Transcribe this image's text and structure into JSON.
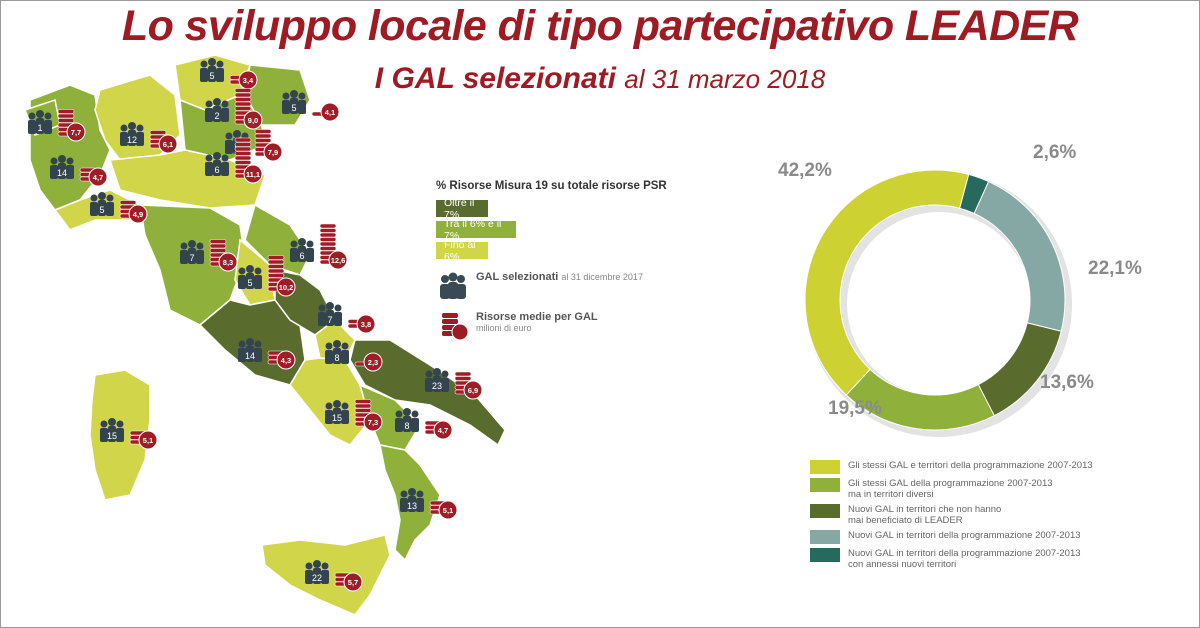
{
  "header": {
    "title": "Lo sviluppo locale di tipo partecipativo LEADER",
    "subtitle_bold": "I GAL selezionati",
    "subtitle_date": "al 31 marzo 2018"
  },
  "map_legend": {
    "title": "% Risorse Misura 19 su totale risorse PSR",
    "classes": [
      {
        "label": "Oltre il 7%",
        "color": "#5a6b2e"
      },
      {
        "label": "Tra il 6% e il 7%",
        "color": "#8fb13c"
      },
      {
        "label": "Fino al 6%",
        "color": "#d1d54a"
      }
    ],
    "gal_label": "GAL selezionati",
    "gal_date": "al 31 dicembre 2017",
    "res_label": "Risorse medie per GAL",
    "res_unit": "milioni di euro"
  },
  "regions": [
    {
      "gal": "5",
      "res": "3,4"
    },
    {
      "gal": "2",
      "res": "9,0"
    },
    {
      "gal": "5",
      "res": "4,1"
    },
    {
      "gal": "1",
      "res": "7,7"
    },
    {
      "gal": "12",
      "res": "6,1"
    },
    {
      "gal": "9",
      "res": "7,9"
    },
    {
      "gal": "14",
      "res": "4,7"
    },
    {
      "gal": "5",
      "res": "4,9"
    },
    {
      "gal": "6",
      "res": "11,1"
    },
    {
      "gal": "6",
      "res": "12,6"
    },
    {
      "gal": "7",
      "res": "8,3"
    },
    {
      "gal": "5",
      "res": "10,2"
    },
    {
      "gal": "7",
      "res": "3,8"
    },
    {
      "gal": "14",
      "res": "4,3"
    },
    {
      "gal": "8",
      "res": "2,3"
    },
    {
      "gal": "23",
      "res": "6,9"
    },
    {
      "gal": "15",
      "res": "7,3"
    },
    {
      "gal": "8",
      "res": "4,7"
    },
    {
      "gal": "15",
      "res": "5,1"
    },
    {
      "gal": "13",
      "res": "5,1"
    },
    {
      "gal": "22",
      "res": "5,7"
    }
  ],
  "chart_data": {
    "type": "pie",
    "categories": [
      "Gli stessi GAL e territori della programmazione 2007-2013",
      "Gli stessi GAL della programmazione 2007-2013 ma in territori diversi",
      "Nuovi GAL in territori che non hanno mai beneficiato di LEADER",
      "Nuovi GAL in territori della programmazione 2007-2013",
      "Nuovi GAL in territori della programmazione 2007-2013 con annessi nuovi territori"
    ],
    "values": [
      42.2,
      19.5,
      13.6,
      22.1,
      2.6
    ],
    "value_labels": [
      "42,2%",
      "19,5%",
      "13,6%",
      "22,1%",
      "2,6%"
    ],
    "colors": [
      "#cdd232",
      "#8fb13c",
      "#5a6b2e",
      "#86a8a4",
      "#256a5c"
    ],
    "legend_lines": [
      [
        "Gli stessi GAL e territori della programmazione 2007-2013"
      ],
      [
        "Gli stessi GAL della programmazione 2007-2013",
        "ma in territori diversi"
      ],
      [
        "Nuovi GAL in territori che non hanno",
        "mai beneficiato di LEADER"
      ],
      [
        "Nuovi GAL in territori della programmazione 2007-2013"
      ],
      [
        "Nuovi GAL in territori della programmazione 2007-2013",
        "con annessi nuovi territori"
      ]
    ],
    "legend_placement": "bottom-right"
  }
}
